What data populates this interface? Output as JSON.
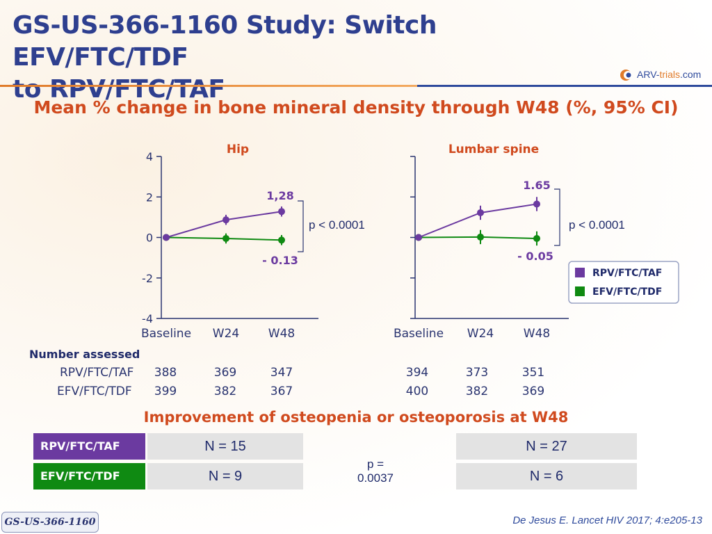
{
  "header": {
    "title_line1": "GS-US-366-1160 Study: Switch EFV/FTC/TDF",
    "title_line2": "to RPV/FTC/TAF",
    "logo_text_main": "ARV-",
    "logo_text_accent": "trials",
    "logo_text_suffix": ".com"
  },
  "subtitle": "Mean % change in bone mineral density through W48 (%, 95% CI)",
  "colors": {
    "rpv": "#6b3aa0",
    "efv": "#0f8a12",
    "title": "#2e3f8f",
    "accent": "#d04a1e"
  },
  "chart_data": [
    {
      "type": "line",
      "title": "Hip",
      "categories": [
        "Baseline",
        "W24",
        "W48"
      ],
      "ylim": [
        -4,
        4
      ],
      "yticks": [
        "4",
        "2",
        "0",
        "-2",
        "-4"
      ],
      "series": [
        {
          "name": "RPV/FTC/TAF",
          "values": [
            0,
            0.87,
            1.28
          ],
          "ci": [
            [
              0,
              0
            ],
            [
              0.62,
              1.12
            ],
            [
              1.03,
              1.53
            ]
          ]
        },
        {
          "name": "EFV/FTC/TDF",
          "values": [
            0,
            -0.05,
            -0.13
          ],
          "ci": [
            [
              0,
              0
            ],
            [
              -0.3,
              0.2
            ],
            [
              -0.38,
              0.12
            ]
          ]
        }
      ],
      "annotations": {
        "rpv_w48": "1,28",
        "efv_w48": "- 0.13",
        "p_value": "p < 0.0001"
      }
    },
    {
      "type": "line",
      "title": "Lumbar spine",
      "categories": [
        "Baseline",
        "W24",
        "W48"
      ],
      "ylim": [
        -4,
        4
      ],
      "series": [
        {
          "name": "RPV/FTC/TAF",
          "values": [
            0,
            1.22,
            1.65
          ],
          "ci": [
            [
              0,
              0
            ],
            [
              0.87,
              1.57
            ],
            [
              1.3,
              2.0
            ]
          ]
        },
        {
          "name": "EFV/FTC/TDF",
          "values": [
            0,
            0.02,
            -0.05
          ],
          "ci": [
            [
              0,
              0
            ],
            [
              -0.33,
              0.37
            ],
            [
              -0.4,
              0.3
            ]
          ]
        }
      ],
      "annotations": {
        "rpv_w48": "1.65",
        "efv_w48": "- 0.05",
        "p_value": "p < 0.0001"
      },
      "legend": [
        "RPV/FTC/TAF",
        "EFV/FTC/TDF"
      ]
    }
  ],
  "number_assessed": {
    "heading": "Number assessed",
    "rows": [
      {
        "label": "RPV/FTC/TAF",
        "hip": [
          "388",
          "369",
          "347"
        ],
        "spine": [
          "394",
          "373",
          "351"
        ]
      },
      {
        "label": "EFV/FTC/TDF",
        "hip": [
          "399",
          "382",
          "367"
        ],
        "spine": [
          "400",
          "382",
          "369"
        ]
      }
    ]
  },
  "improvement": {
    "heading": "Improvement of osteopenia or osteoporosis at W48",
    "rows": [
      {
        "label": "RPV/FTC/TAF",
        "hip": "N = 15",
        "spine": "N = 27"
      },
      {
        "label": "EFV/FTC/TDF",
        "hip": "N = 9",
        "spine": "N = 6"
      }
    ],
    "p_value_line1": "p =",
    "p_value_line2": "0.0037"
  },
  "footer": {
    "tag": "GS-US-366-1160",
    "citation": "De Jesus E. Lancet HIV 2017; 4:e205-13"
  }
}
